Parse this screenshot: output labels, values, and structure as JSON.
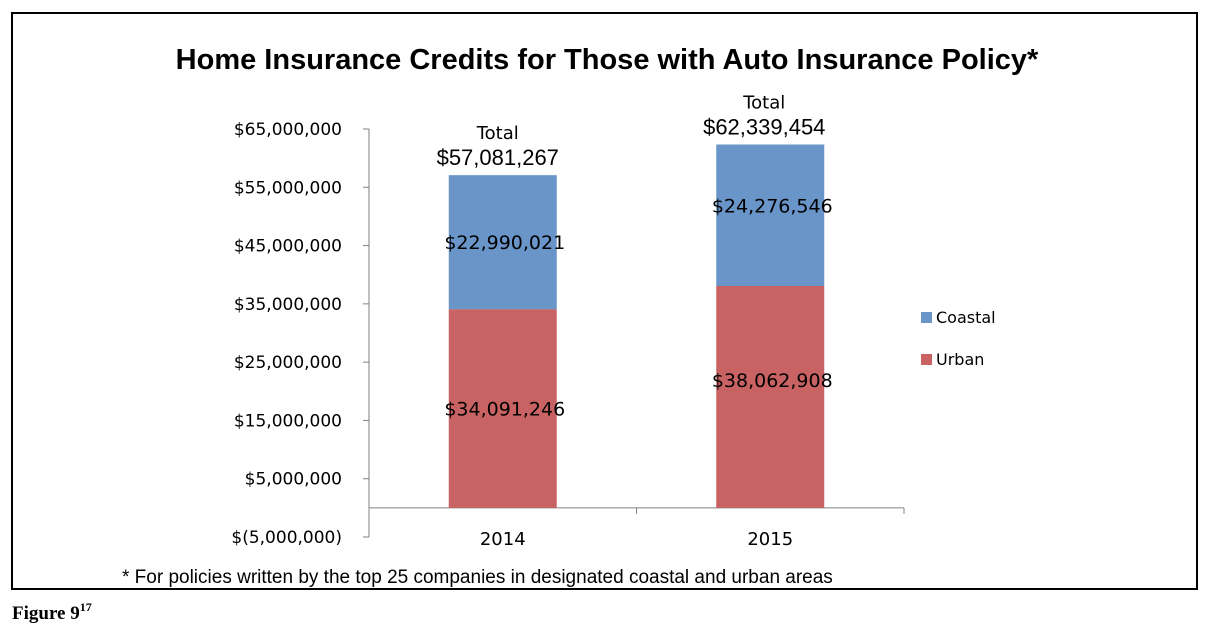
{
  "figure_label": "Figure 9",
  "figure_superscript": "17",
  "footnote": "* For policies written by the top 25 companies in designated coastal and urban areas",
  "colors": {
    "coastal": "#6a95c9",
    "urban": "#c96262",
    "axis": "#808080"
  },
  "chart_data": {
    "type": "bar",
    "stacked": true,
    "title": "Home Insurance Credits for Those with Auto Insurance Policy*",
    "xlabel": "",
    "ylabel": "",
    "categories": [
      "2014",
      "2015"
    ],
    "series": [
      {
        "name": "Urban",
        "values": [
          34091246,
          38062908
        ],
        "labels": [
          "$34,091,246",
          "$38,062,908"
        ]
      },
      {
        "name": "Coastal",
        "values": [
          22990021,
          24276546
        ],
        "labels": [
          "$22,990,021",
          "$24,276,546"
        ]
      }
    ],
    "totals": [
      57081267,
      62339454
    ],
    "total_caption": "Total",
    "total_labels": [
      "$57,081,267",
      "$62,339,454"
    ],
    "ylim": [
      -5000000,
      65000000
    ],
    "ytick_values": [
      -5000000,
      5000000,
      15000000,
      25000000,
      35000000,
      45000000,
      55000000,
      65000000
    ],
    "ytick_labels": [
      "$(5,000,000)",
      "$5,000,000",
      "$15,000,000",
      "$25,000,000",
      "$35,000,000",
      "$45,000,000",
      "$55,000,000",
      "$65,000,000"
    ],
    "legend": {
      "position": "right",
      "entries": [
        "Coastal",
        "Urban"
      ]
    },
    "grid": false
  }
}
